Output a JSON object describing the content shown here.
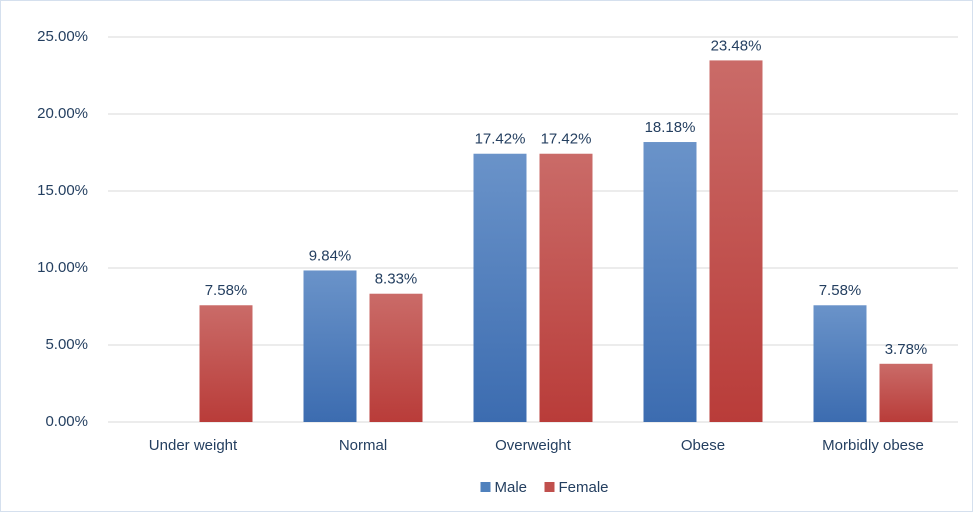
{
  "chart_data": {
    "type": "bar",
    "categories": [
      "Under weight",
      "Normal",
      "Overweight",
      "Obese",
      "Morbidly obese"
    ],
    "series": [
      {
        "name": "Male",
        "color": "#4f81bd",
        "values": [
          null,
          9.84,
          17.42,
          18.18,
          7.58
        ],
        "value_labels": [
          null,
          "9.84%",
          "17.42%",
          "18.18%",
          "7.58%"
        ]
      },
      {
        "name": "Female",
        "color": "#c0504d",
        "values": [
          7.58,
          8.33,
          17.42,
          23.48,
          3.78
        ],
        "value_labels": [
          "7.58%",
          "8.33%",
          "17.42%",
          "23.48%",
          "3.78%"
        ]
      }
    ],
    "ylim": [
      0,
      25
    ],
    "yticks": [
      {
        "value": 0,
        "label": "0.00%"
      },
      {
        "value": 5,
        "label": "5.00%"
      },
      {
        "value": 10,
        "label": "10.00%"
      },
      {
        "value": 15,
        "label": "15.00%"
      },
      {
        "value": 20,
        "label": "20.00%"
      },
      {
        "value": 25,
        "label": "25.00%"
      }
    ],
    "grid": true,
    "legend": "bottom"
  }
}
